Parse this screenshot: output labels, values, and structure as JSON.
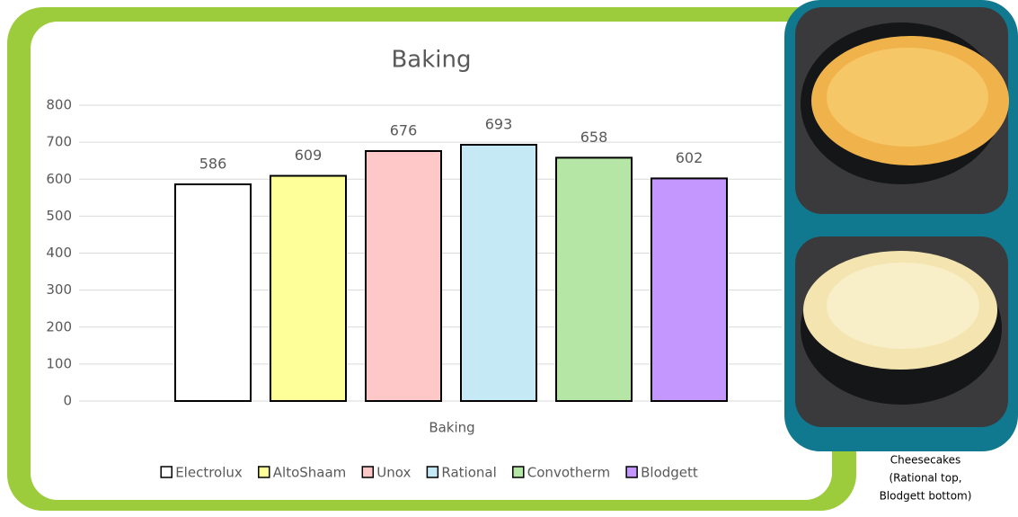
{
  "chart_data": {
    "type": "bar",
    "title": "Baking",
    "x_label": "Baking",
    "categories": [
      "Baking"
    ],
    "series": [
      {
        "name": "Electrolux",
        "color": "#ffffff",
        "values": [
          586
        ]
      },
      {
        "name": "AltoShaam",
        "color": "#ffff99",
        "values": [
          609
        ]
      },
      {
        "name": "Unox",
        "color": "#ffc8c8",
        "values": [
          676
        ]
      },
      {
        "name": "Rational",
        "color": "#c6e9f6",
        "values": [
          693
        ]
      },
      {
        "name": "Convotherm",
        "color": "#b6e6a6",
        "values": [
          658
        ]
      },
      {
        "name": "Blodgett",
        "color": "#c497ff",
        "values": [
          602
        ]
      }
    ],
    "ylim": [
      0,
      800
    ],
    "yticks": [
      0,
      100,
      200,
      300,
      400,
      500,
      600,
      700,
      800
    ],
    "grid": true,
    "legend": "bottom"
  },
  "caption_lines": [
    "Cheesecakes",
    "(Rational top,",
    "Blodgett bottom)"
  ]
}
